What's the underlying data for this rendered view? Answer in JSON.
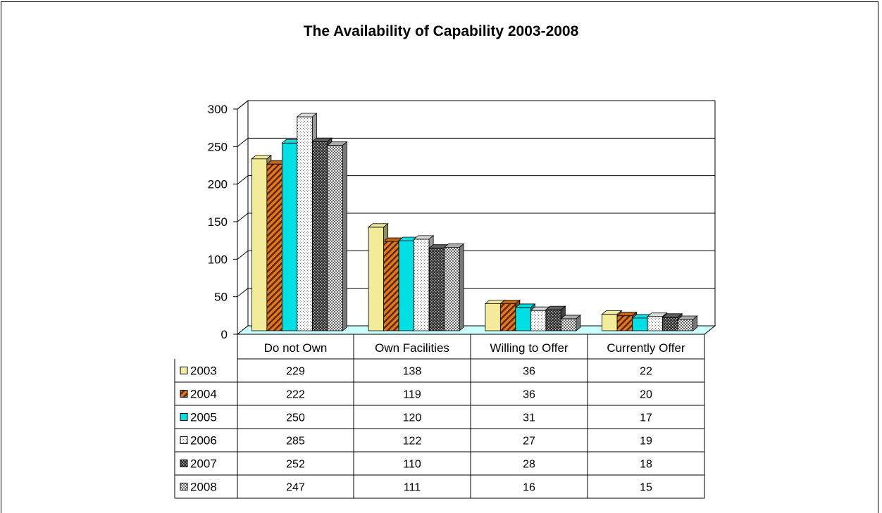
{
  "chart_data": {
    "type": "bar",
    "title": "The Availability of Capability 2003-2008",
    "categories": [
      "Do not Own",
      "Own Facilities",
      "Willing to Offer",
      "Currently Offer"
    ],
    "series": [
      {
        "name": "2003",
        "values": [
          229,
          138,
          36,
          22
        ],
        "color": "#f2eb9a",
        "pattern": "solid"
      },
      {
        "name": "2004",
        "values": [
          222,
          119,
          36,
          20
        ],
        "color": "#e8781a",
        "pattern": "diagonal-stripes"
      },
      {
        "name": "2005",
        "values": [
          250,
          120,
          31,
          17
        ],
        "color": "#00e0e4",
        "pattern": "solid"
      },
      {
        "name": "2006",
        "values": [
          285,
          122,
          27,
          19
        ],
        "color": "#ffffff",
        "pattern": "light-dots"
      },
      {
        "name": "2007",
        "values": [
          252,
          110,
          28,
          18
        ],
        "color": "#707070",
        "pattern": "dark-checker"
      },
      {
        "name": "2008",
        "values": [
          247,
          111,
          16,
          15
        ],
        "color": "#c8c8c8",
        "pattern": "medium-checker"
      }
    ],
    "y_ticks": [
      "0",
      "50",
      "100",
      "150",
      "200",
      "250",
      "300"
    ],
    "ylim": [
      0,
      300
    ],
    "grid": true,
    "floor_color": "#ccffff",
    "data_table": true
  }
}
